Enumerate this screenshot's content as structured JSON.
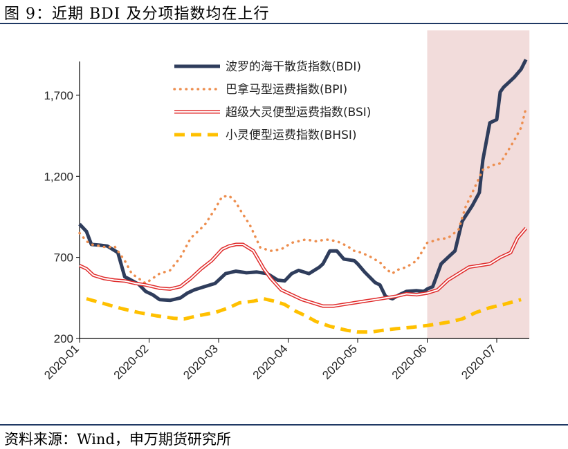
{
  "header": {
    "title": "图 9：近期 BDI 及分项指数均在上行"
  },
  "footer": {
    "source": "资料来源：Wind，申万期货研究所"
  },
  "chart_data": {
    "type": "line",
    "x_tick_labels": [
      "2020-01",
      "2020-02",
      "2020-03",
      "2020-04",
      "2020-05",
      "2020-06",
      "2020-07"
    ],
    "y_tick_labels": [
      "200",
      "700",
      "1,200",
      "1,700"
    ],
    "ylim": [
      200,
      2100
    ],
    "legend_position": "top-center",
    "grid": false,
    "highlight_region": {
      "x_start": 5.0,
      "x_end": 6.47,
      "color": "#f2dcdb"
    },
    "series": [
      {
        "name": "波罗的海干散货指数(BDI)",
        "style": "solid-thick",
        "color": "#2f3d5c",
        "x": [
          0,
          0.1,
          0.17,
          0.3,
          0.4,
          0.55,
          0.65,
          0.72,
          0.85,
          0.95,
          1.05,
          1.15,
          1.3,
          1.45,
          1.55,
          1.65,
          1.8,
          1.95,
          2.1,
          2.25,
          2.4,
          2.55,
          2.7,
          2.85,
          2.95,
          3.05,
          3.15,
          3.3,
          3.45,
          3.5,
          3.6,
          3.7,
          3.8,
          3.95,
          4.0,
          4.1,
          4.25,
          4.32,
          4.4,
          4.5,
          4.6,
          4.7,
          4.85,
          4.95,
          5.0,
          5.08,
          5.2,
          5.3,
          5.4,
          5.5,
          5.52,
          5.65,
          5.75,
          5.8,
          5.9,
          6.0,
          6.05,
          6.1,
          6.2,
          6.25,
          6.35,
          6.42
        ],
        "values": [
          905,
          860,
          780,
          775,
          770,
          730,
          580,
          565,
          535,
          490,
          470,
          440,
          435,
          450,
          480,
          500,
          520,
          540,
          600,
          615,
          605,
          610,
          600,
          560,
          555,
          600,
          620,
          600,
          640,
          660,
          740,
          740,
          690,
          680,
          660,
          610,
          545,
          530,
          460,
          445,
          470,
          490,
          495,
          490,
          505,
          520,
          660,
          700,
          740,
          920,
          935,
          1020,
          1100,
          1300,
          1530,
          1550,
          1720,
          1750,
          1790,
          1810,
          1860,
          1920
        ]
      },
      {
        "name": "巴拿马型运费指数(BPI)",
        "style": "dotted",
        "color": "#ed8e4f",
        "x": [
          0,
          0.1,
          0.17,
          0.3,
          0.4,
          0.5,
          0.55,
          0.65,
          0.75,
          0.95,
          1.05,
          1.15,
          1.3,
          1.45,
          1.6,
          1.8,
          1.95,
          2.05,
          2.15,
          2.25,
          2.3,
          2.45,
          2.6,
          2.75,
          2.9,
          3.05,
          3.25,
          3.4,
          3.55,
          3.7,
          3.85,
          3.95,
          4.05,
          4.2,
          4.35,
          4.4,
          4.5,
          4.55,
          4.7,
          4.85,
          5.0,
          5.15,
          5.3,
          5.45,
          5.55,
          5.65,
          5.8,
          5.95,
          6.05,
          6.15,
          6.25,
          6.35,
          6.42
        ],
        "values": [
          850,
          800,
          780,
          770,
          760,
          770,
          740,
          680,
          600,
          540,
          570,
          600,
          620,
          700,
          820,
          900,
          1000,
          1075,
          1080,
          1040,
          1000,
          900,
          760,
          740,
          750,
          790,
          810,
          800,
          810,
          800,
          770,
          740,
          730,
          700,
          660,
          630,
          600,
          620,
          640,
          680,
          790,
          810,
          820,
          870,
          1010,
          1100,
          1240,
          1270,
          1280,
          1350,
          1420,
          1500,
          1620
        ]
      },
      {
        "name": "超级大灵便型运费指数(BSI)",
        "style": "double-line",
        "color": "#e02b2b",
        "x": [
          0,
          0.1,
          0.2,
          0.35,
          0.5,
          0.65,
          0.8,
          0.95,
          1.15,
          1.3,
          1.45,
          1.6,
          1.75,
          1.9,
          2.05,
          2.15,
          2.25,
          2.35,
          2.5,
          2.65,
          2.75,
          2.9,
          3.05,
          3.2,
          3.35,
          3.5,
          3.65,
          3.8,
          3.95,
          4.1,
          4.25,
          4.4,
          4.55,
          4.7,
          4.85,
          5.0,
          5.15,
          5.3,
          5.45,
          5.6,
          5.75,
          5.9,
          6.05,
          6.2,
          6.3,
          6.42
        ],
        "values": [
          650,
          630,
          590,
          570,
          560,
          555,
          540,
          530,
          510,
          505,
          520,
          570,
          630,
          680,
          750,
          770,
          780,
          780,
          740,
          630,
          570,
          500,
          470,
          440,
          420,
          400,
          400,
          410,
          420,
          430,
          440,
          450,
          460,
          475,
          470,
          480,
          500,
          560,
          600,
          640,
          650,
          660,
          700,
          730,
          820,
          880
        ]
      },
      {
        "name": "小灵便型运费指数(BHSI)",
        "style": "dashed-thick",
        "color": "#ffc000",
        "x": [
          0.1,
          0.35,
          0.6,
          0.85,
          1.1,
          1.35,
          1.5,
          1.7,
          1.95,
          2.15,
          2.3,
          2.5,
          2.65,
          2.8,
          2.95,
          3.1,
          3.25,
          3.4,
          3.6,
          3.85,
          4.0,
          4.2,
          4.35,
          4.55,
          4.8,
          5.0,
          5.15,
          5.3,
          5.5,
          5.7,
          5.9,
          6.1,
          6.35
        ],
        "values": [
          445,
          415,
          385,
          360,
          340,
          325,
          320,
          340,
          360,
          390,
          420,
          430,
          445,
          430,
          410,
          370,
          340,
          305,
          275,
          250,
          240,
          240,
          250,
          260,
          270,
          280,
          290,
          300,
          320,
          360,
          390,
          410,
          440
        ]
      }
    ]
  }
}
